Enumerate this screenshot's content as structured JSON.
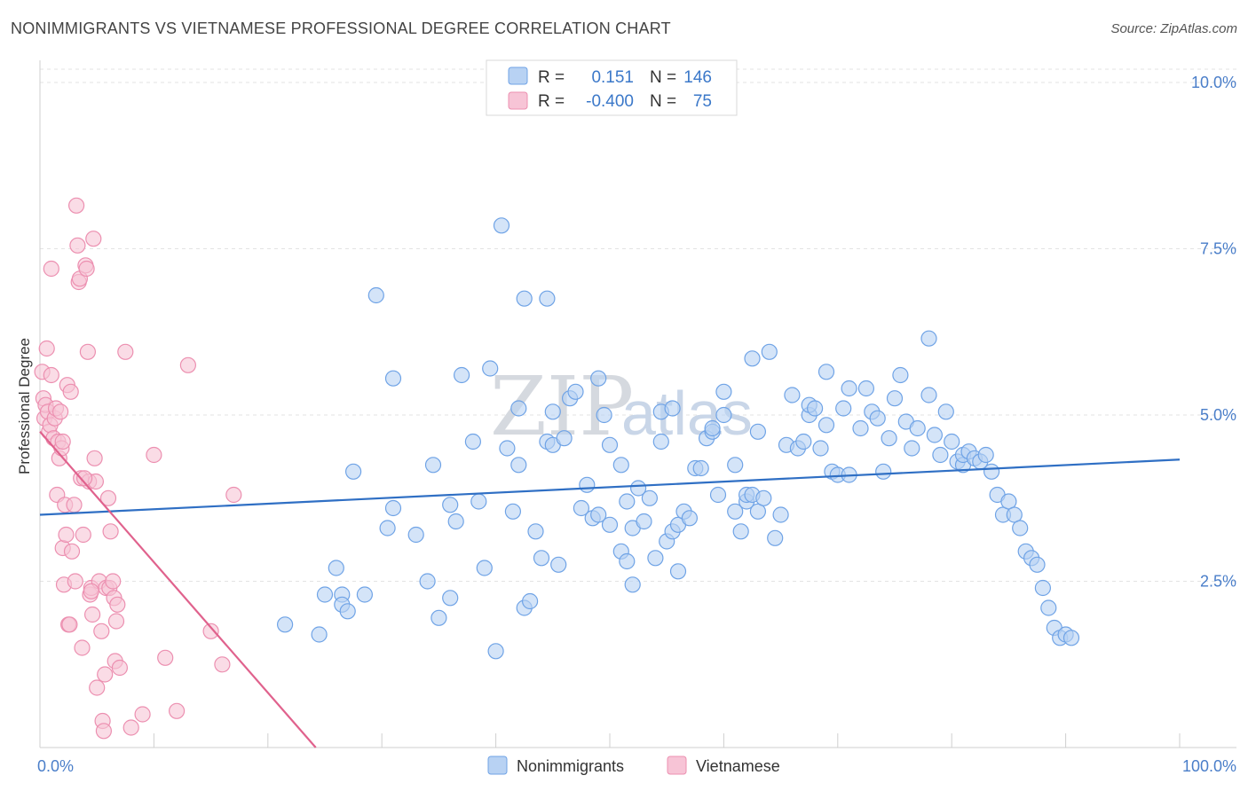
{
  "title": "NONIMMIGRANTS VS VIETNAMESE PROFESSIONAL DEGREE CORRELATION CHART",
  "source": "Source: ZipAtlas.com",
  "watermark": {
    "part1": "ZIP",
    "part2": "atlas"
  },
  "colors": {
    "blue": "#6fa3e6",
    "blue_fill": "#b8d2f3",
    "blue_line": "#2f6fc4",
    "pink": "#ec8fb0",
    "pink_fill": "#f7c4d6",
    "pink_line": "#e0628d"
  },
  "legend_top": {
    "rows": [
      {
        "r_label": "R =",
        "r_value": "0.151",
        "n_label": "N =",
        "n_value": "146"
      },
      {
        "r_label": "R =",
        "r_value": "-0.400",
        "n_label": "N =",
        "n_value": "75"
      }
    ]
  },
  "legend_bottom": {
    "series1": "Nonimmigrants",
    "series2": "Vietnamese"
  },
  "chart_data": {
    "type": "scatter",
    "ylabel": "Professional Degree",
    "xlabel": "",
    "xlim": [
      0,
      100
    ],
    "ylim": [
      0,
      10.2
    ],
    "x_tick_labels": [
      "0.0%",
      "100.0%"
    ],
    "y_ticks": [
      2.5,
      5.0,
      7.5,
      10.0
    ],
    "y_tick_labels": [
      "2.5%",
      "5.0%",
      "7.5%",
      "10.0%"
    ],
    "grid": true,
    "series": [
      {
        "name": "Nonimmigrants",
        "trend": {
          "x": [
            0,
            100
          ],
          "y": [
            3.5,
            4.33
          ]
        },
        "points": [
          [
            21.5,
            1.85
          ],
          [
            24.5,
            1.7
          ],
          [
            25,
            2.3
          ],
          [
            26,
            2.7
          ],
          [
            26.5,
            2.3
          ],
          [
            26.5,
            2.15
          ],
          [
            27,
            2.05
          ],
          [
            27.5,
            4.15
          ],
          [
            28.5,
            2.3
          ],
          [
            29.5,
            6.8
          ],
          [
            30.5,
            3.3
          ],
          [
            31,
            3.6
          ],
          [
            31,
            5.55
          ],
          [
            33,
            3.2
          ],
          [
            34,
            2.5
          ],
          [
            34.5,
            4.25
          ],
          [
            35,
            1.95
          ],
          [
            36,
            2.25
          ],
          [
            36,
            3.65
          ],
          [
            36.5,
            3.4
          ],
          [
            37,
            5.6
          ],
          [
            38,
            4.6
          ],
          [
            38.5,
            3.7
          ],
          [
            39,
            2.7
          ],
          [
            39.5,
            5.7
          ],
          [
            40,
            1.45
          ],
          [
            40.5,
            7.85
          ],
          [
            41,
            4.5
          ],
          [
            41.5,
            3.55
          ],
          [
            42,
            4.25
          ],
          [
            42,
            5.1
          ],
          [
            42.5,
            6.75
          ],
          [
            42.5,
            2.1
          ],
          [
            43,
            2.2
          ],
          [
            43.5,
            3.25
          ],
          [
            44,
            2.85
          ],
          [
            44.5,
            4.6
          ],
          [
            44.5,
            6.75
          ],
          [
            45,
            5.05
          ],
          [
            45,
            4.55
          ],
          [
            45.5,
            2.75
          ],
          [
            46,
            4.65
          ],
          [
            46.5,
            5.25
          ],
          [
            47,
            5.35
          ],
          [
            47.5,
            3.6
          ],
          [
            48,
            3.95
          ],
          [
            48.5,
            3.45
          ],
          [
            49,
            3.5
          ],
          [
            49,
            5.55
          ],
          [
            49.5,
            5.0
          ],
          [
            50,
            4.55
          ],
          [
            50,
            3.35
          ],
          [
            51,
            4.25
          ],
          [
            51,
            2.95
          ],
          [
            51.5,
            3.7
          ],
          [
            51.5,
            2.8
          ],
          [
            52,
            3.3
          ],
          [
            52,
            2.45
          ],
          [
            52.5,
            3.9
          ],
          [
            53,
            3.4
          ],
          [
            53.5,
            3.75
          ],
          [
            54,
            2.85
          ],
          [
            54.5,
            5.05
          ],
          [
            54.5,
            4.6
          ],
          [
            55,
            3.1
          ],
          [
            55.5,
            3.25
          ],
          [
            55.5,
            5.1
          ],
          [
            56,
            2.65
          ],
          [
            56,
            3.35
          ],
          [
            56.5,
            3.55
          ],
          [
            57,
            3.45
          ],
          [
            57.5,
            4.2
          ],
          [
            58,
            4.2
          ],
          [
            58.5,
            4.65
          ],
          [
            59,
            4.75
          ],
          [
            59,
            4.8
          ],
          [
            59.5,
            3.8
          ],
          [
            60,
            5.35
          ],
          [
            60,
            5.0
          ],
          [
            61,
            3.55
          ],
          [
            61,
            4.25
          ],
          [
            61.5,
            3.25
          ],
          [
            62,
            3.7
          ],
          [
            62,
            3.8
          ],
          [
            62.5,
            5.85
          ],
          [
            62.5,
            3.8
          ],
          [
            63,
            4.75
          ],
          [
            63,
            3.55
          ],
          [
            63.5,
            3.75
          ],
          [
            64,
            5.95
          ],
          [
            64.5,
            3.15
          ],
          [
            65,
            3.5
          ],
          [
            65.5,
            4.55
          ],
          [
            66,
            5.3
          ],
          [
            66.5,
            4.5
          ],
          [
            67,
            4.6
          ],
          [
            67.5,
            5.0
          ],
          [
            67.5,
            5.15
          ],
          [
            68,
            5.1
          ],
          [
            68.5,
            4.5
          ],
          [
            69,
            4.85
          ],
          [
            69,
            5.65
          ],
          [
            69.5,
            4.15
          ],
          [
            70,
            4.1
          ],
          [
            70.5,
            5.1
          ],
          [
            71,
            5.4
          ],
          [
            71,
            4.1
          ],
          [
            72,
            4.8
          ],
          [
            72.5,
            5.4
          ],
          [
            73,
            5.05
          ],
          [
            73.5,
            4.95
          ],
          [
            74,
            4.15
          ],
          [
            74.5,
            4.65
          ],
          [
            75,
            5.25
          ],
          [
            75.5,
            5.6
          ],
          [
            76,
            4.9
          ],
          [
            76.5,
            4.5
          ],
          [
            77,
            4.8
          ],
          [
            78,
            6.15
          ],
          [
            78,
            5.3
          ],
          [
            78.5,
            4.7
          ],
          [
            79,
            4.4
          ],
          [
            79.5,
            5.05
          ],
          [
            80,
            4.6
          ],
          [
            80.5,
            4.3
          ],
          [
            81,
            4.25
          ],
          [
            81,
            4.4
          ],
          [
            81.5,
            4.45
          ],
          [
            82,
            4.35
          ],
          [
            82.5,
            4.3
          ],
          [
            83,
            4.4
          ],
          [
            83.5,
            4.15
          ],
          [
            84,
            3.8
          ],
          [
            84.5,
            3.5
          ],
          [
            85,
            3.7
          ],
          [
            85.5,
            3.5
          ],
          [
            86,
            3.3
          ],
          [
            86.5,
            2.95
          ],
          [
            87,
            2.85
          ],
          [
            87.5,
            2.75
          ],
          [
            88,
            2.4
          ],
          [
            88.5,
            2.1
          ],
          [
            89,
            1.8
          ],
          [
            89.5,
            1.65
          ],
          [
            90,
            1.7
          ],
          [
            90.5,
            1.65
          ]
        ]
      },
      {
        "name": "Vietnamese",
        "trend": {
          "x": [
            0,
            24.2
          ],
          "y": [
            4.75,
            0
          ]
        },
        "points": [
          [
            0.2,
            5.65
          ],
          [
            0.3,
            5.25
          ],
          [
            0.4,
            4.95
          ],
          [
            0.5,
            5.15
          ],
          [
            0.6,
            6.0
          ],
          [
            0.7,
            5.05
          ],
          [
            0.8,
            4.75
          ],
          [
            0.9,
            4.85
          ],
          [
            1.0,
            7.2
          ],
          [
            1.0,
            5.6
          ],
          [
            1.2,
            4.65
          ],
          [
            1.3,
            4.95
          ],
          [
            1.4,
            5.1
          ],
          [
            1.5,
            3.8
          ],
          [
            1.6,
            4.6
          ],
          [
            1.7,
            4.35
          ],
          [
            1.8,
            5.05
          ],
          [
            1.9,
            4.5
          ],
          [
            2.0,
            3.0
          ],
          [
            2.1,
            2.45
          ],
          [
            2.2,
            3.65
          ],
          [
            2.3,
            3.2
          ],
          [
            2.4,
            5.45
          ],
          [
            2.5,
            1.85
          ],
          [
            2.6,
            1.85
          ],
          [
            2.7,
            5.35
          ],
          [
            2.8,
            2.95
          ],
          [
            3.0,
            3.65
          ],
          [
            3.1,
            2.5
          ],
          [
            3.2,
            8.15
          ],
          [
            3.3,
            7.55
          ],
          [
            3.4,
            7.0
          ],
          [
            3.5,
            7.05
          ],
          [
            3.6,
            4.05
          ],
          [
            3.7,
            1.5
          ],
          [
            3.8,
            3.2
          ],
          [
            4.0,
            7.25
          ],
          [
            4.1,
            7.2
          ],
          [
            4.2,
            5.95
          ],
          [
            4.3,
            4.0
          ],
          [
            4.4,
            2.3
          ],
          [
            4.5,
            2.4
          ],
          [
            4.6,
            2.0
          ],
          [
            4.7,
            7.65
          ],
          [
            4.8,
            4.35
          ],
          [
            4.9,
            4.0
          ],
          [
            5.0,
            0.9
          ],
          [
            5.2,
            2.5
          ],
          [
            5.4,
            1.75
          ],
          [
            5.5,
            0.4
          ],
          [
            5.6,
            0.25
          ],
          [
            5.7,
            1.1
          ],
          [
            5.8,
            2.4
          ],
          [
            6.0,
            3.75
          ],
          [
            6.1,
            2.4
          ],
          [
            6.2,
            3.25
          ],
          [
            6.4,
            2.5
          ],
          [
            6.5,
            2.25
          ],
          [
            6.6,
            1.3
          ],
          [
            6.7,
            1.9
          ],
          [
            6.8,
            2.15
          ],
          [
            7.0,
            1.2
          ],
          [
            7.5,
            5.95
          ],
          [
            8.0,
            0.3
          ],
          [
            9.0,
            0.5
          ],
          [
            10.0,
            4.4
          ],
          [
            11.0,
            1.35
          ],
          [
            12.0,
            0.55
          ],
          [
            13.0,
            5.75
          ],
          [
            15.0,
            1.75
          ],
          [
            16.0,
            1.25
          ],
          [
            17.0,
            3.8
          ],
          [
            2.0,
            4.6
          ],
          [
            3.9,
            4.05
          ],
          [
            4.5,
            2.35
          ]
        ]
      }
    ]
  }
}
